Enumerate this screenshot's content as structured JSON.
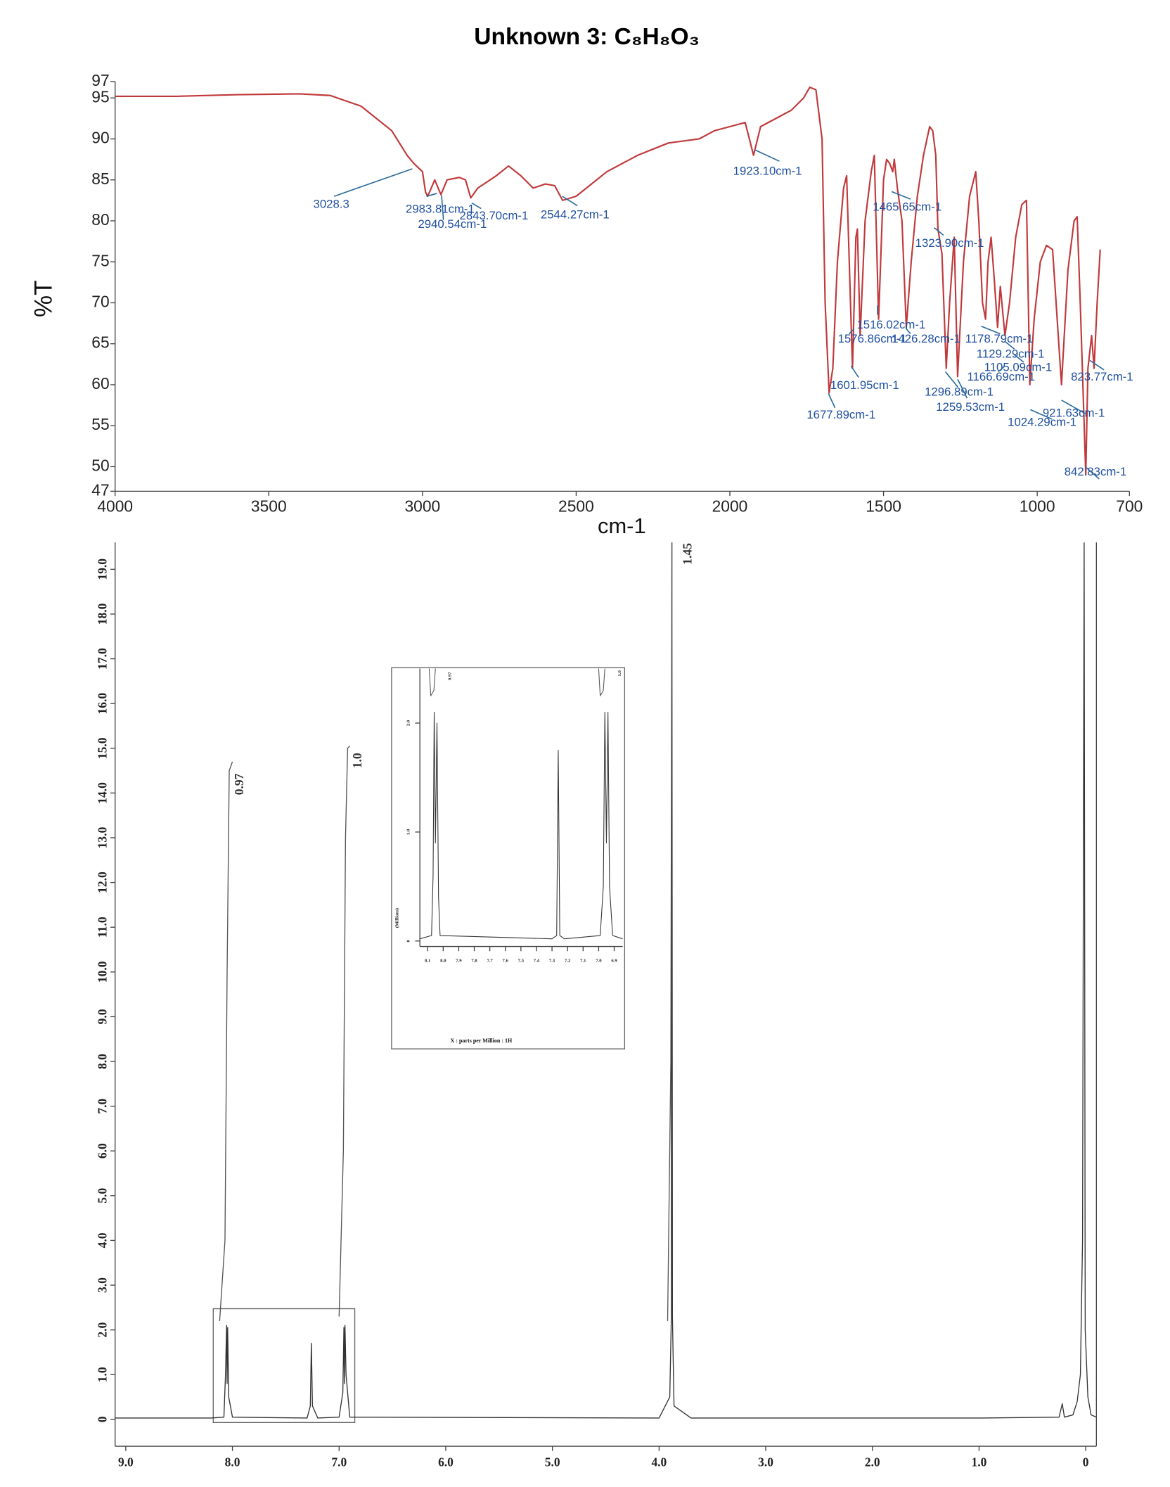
{
  "chart_data": [
    {
      "type": "line",
      "title": "Unknown 3: C₈H₈O₃",
      "x_label": "cm-1",
      "y_label": "%T",
      "xlim": [
        4000,
        700
      ],
      "xticks": [
        4000,
        3500,
        3000,
        2500,
        2000,
        1500,
        1000,
        700
      ],
      "ylim": [
        47,
        97
      ],
      "yticks": [
        97,
        95,
        90,
        85,
        80,
        75,
        70,
        65,
        60,
        55,
        50,
        47
      ],
      "grid": false,
      "annotations": [
        "3028.3",
        "2983.81cm-1",
        "2843.70cm-1",
        "2940.54cm-1",
        "2544.27cm-1",
        "1923.10cm-1",
        "1465.65cm-1",
        "1323.90cm-1",
        "1516.02cm-1",
        "1576.86cm-1",
        "1426.28cm-1",
        "1178.79cm-1",
        "1129.29cm-1",
        "1105.09cm-1",
        "1166.69cm-1",
        "823.77cm-1",
        "1601.95cm-1",
        "1296.89cm-1",
        "1259.53cm-1",
        "1677.89cm-1",
        "921.63cm-1",
        "1024.29cm-1",
        "842.83cm-1"
      ],
      "series": [
        {
          "color": "#c0393b",
          "x": [
            4000,
            3800,
            3600,
            3400,
            3300,
            3200,
            3100,
            3050,
            3028,
            3000,
            2990,
            2983,
            2960,
            2940,
            2920,
            2880,
            2860,
            2843,
            2820,
            2760,
            2720,
            2680,
            2640,
            2600,
            2570,
            2544,
            2500,
            2400,
            2300,
            2200,
            2100,
            2050,
            2000,
            1950,
            1923,
            1900,
            1850,
            1800,
            1760,
            1740,
            1720,
            1700,
            1690,
            1677,
            1665,
            1650,
            1630,
            1620,
            1601,
            1590,
            1585,
            1576,
            1560,
            1540,
            1530,
            1516,
            1500,
            1490,
            1480,
            1470,
            1465,
            1455,
            1440,
            1426,
            1410,
            1390,
            1370,
            1350,
            1340,
            1330,
            1323,
            1310,
            1296,
            1285,
            1270,
            1259,
            1240,
            1220,
            1200,
            1190,
            1178,
            1168,
            1160,
            1150,
            1140,
            1129,
            1120,
            1105,
            1090,
            1070,
            1050,
            1035,
            1024,
            1010,
            990,
            970,
            950,
            921,
            900,
            880,
            870,
            860,
            842,
            835,
            823,
            815,
            805,
            795
          ],
          "values": [
            95.2,
            95.2,
            95.4,
            95.5,
            95.3,
            94,
            91,
            88,
            87,
            86,
            83.5,
            83,
            85,
            83.2,
            85,
            85.3,
            85,
            82.8,
            84,
            85.5,
            86.7,
            85.5,
            84,
            84.5,
            84.3,
            82.5,
            83,
            86,
            88,
            89.5,
            90,
            91,
            91.5,
            92,
            88,
            91.5,
            92.5,
            93.5,
            95,
            96.3,
            96,
            90,
            70,
            59,
            62,
            75,
            84,
            85.5,
            62,
            78,
            79,
            66,
            80,
            86,
            88,
            68,
            85,
            87.5,
            87,
            86,
            87.5,
            84,
            80,
            67,
            75,
            83,
            88,
            91.5,
            91,
            88,
            79,
            76,
            62,
            70,
            78,
            61,
            75,
            83,
            86,
            80,
            70,
            68,
            75,
            78,
            73,
            67,
            72,
            66,
            70,
            78,
            82,
            82.5,
            60,
            68,
            75,
            77,
            76.5,
            60,
            74,
            80,
            80.5,
            70,
            49,
            62,
            66,
            62,
            70,
            76.5
          ]
        }
      ]
    },
    {
      "type": "line",
      "xlim": [
        9.1,
        -0.1
      ],
      "xticks": [
        {
          "value": 9,
          "label": "9.0"
        },
        {
          "value": 8,
          "label": "8.0"
        },
        {
          "value": 7,
          "label": "7.0"
        },
        {
          "value": 6,
          "label": "6.0"
        },
        {
          "value": 5,
          "label": "5.0"
        },
        {
          "value": 4,
          "label": "4.0"
        },
        {
          "value": 3,
          "label": "3.0"
        },
        {
          "value": 2,
          "label": "2.0"
        },
        {
          "value": 1,
          "label": "1.0"
        },
        0
      ],
      "ylim": [
        -0.6,
        19.6
      ],
      "yticks": [
        {
          "value": 19,
          "label": "19.0"
        },
        {
          "value": 18,
          "label": "18.0"
        },
        {
          "value": 17,
          "label": "17.0"
        },
        {
          "value": 16,
          "label": "16.0"
        },
        {
          "value": 15,
          "label": "15.0"
        },
        {
          "value": 14,
          "label": "14.0"
        },
        {
          "value": 13,
          "label": "13.0"
        },
        {
          "value": 12,
          "label": "12.0"
        },
        {
          "value": 11,
          "label": "11.0"
        },
        {
          "value": 10,
          "label": "10.0"
        },
        {
          "value": 9,
          "label": "9.0"
        },
        {
          "value": 8,
          "label": "8.0"
        },
        {
          "value": 7,
          "label": "7.0"
        },
        {
          "value": 6,
          "label": "6.0"
        },
        {
          "value": 5,
          "label": "5.0"
        },
        {
          "value": 4,
          "label": "4.0"
        },
        {
          "value": 3,
          "label": "3.0"
        },
        {
          "value": 2,
          "label": "2.0"
        },
        {
          "value": 1,
          "label": "1.0"
        },
        0
      ],
      "grid": false,
      "annotations": [
        "0.97",
        "1.0",
        "1.45"
      ],
      "series": [
        {
          "color": "#333333",
          "x": [
            9.1,
            8.2,
            8.08,
            8.065,
            8.055,
            8.05,
            8.045,
            8.035,
            8.0,
            7.3,
            7.27,
            7.26,
            7.25,
            7.2,
            7.0,
            6.965,
            6.955,
            6.95,
            6.945,
            6.935,
            6.9,
            4.0,
            3.9,
            3.885,
            3.88,
            3.875,
            3.86,
            3.7,
            1.0,
            0.25,
            0.22,
            0.2,
            0.12,
            0.08,
            0.05,
            0.03,
            0.015,
            0.005,
            -0.02,
            -0.05,
            -0.1
          ],
          "values": [
            0.03,
            0.03,
            0.05,
            1.0,
            2.1,
            0.8,
            2.05,
            0.5,
            0.05,
            0.03,
            0.3,
            1.7,
            0.3,
            0.03,
            0.05,
            0.6,
            2.05,
            0.8,
            2.1,
            1.0,
            0.05,
            0.03,
            0.5,
            2.3,
            19.6,
            2.3,
            0.3,
            0.03,
            0.03,
            0.05,
            0.35,
            0.05,
            0.1,
            0.4,
            1.0,
            4.0,
            19.6,
            2.0,
            0.5,
            0.1,
            0.05
          ]
        },
        {
          "color": "#555555",
          "x": [
            8.12,
            8.07,
            8.05,
            8.03,
            8.0
          ],
          "values": [
            2.2,
            4,
            10,
            14.5,
            14.7
          ]
        },
        {
          "color": "#555555",
          "x": [
            7.0,
            6.96,
            6.94,
            6.92,
            6.9
          ],
          "values": [
            2.3,
            6,
            13,
            15.0,
            15.05
          ]
        },
        {
          "color": "#555555",
          "x": [
            3.92,
            3.89,
            3.88
          ],
          "values": [
            2.2,
            8,
            19.6
          ]
        }
      ]
    },
    {
      "type": "line",
      "x_label": "X : parts per Million : 1H",
      "y_label": "(Millions)",
      "xlim": [
        8.15,
        6.845
      ],
      "xticks": [
        8.1,
        {
          "value": 8,
          "label": "8.0"
        },
        7.9,
        7.8,
        7.7,
        7.6,
        7.5,
        7.4,
        7.3,
        7.2,
        7.1,
        {
          "value": 7,
          "label": "7.0"
        },
        6.9
      ],
      "ylim": [
        -0.05,
        2.5
      ],
      "yticks": [
        {
          "value": 2,
          "label": "2.0"
        },
        {
          "value": 1,
          "label": "1.0"
        },
        0
      ],
      "grid": false,
      "annotations": [
        "0.97",
        "1.0"
      ],
      "series": [
        {
          "color": "#333333",
          "x": [
            8.15,
            8.075,
            8.065,
            8.058,
            8.05,
            8.04,
            8.03,
            8.02,
            7.3,
            7.27,
            7.26,
            7.25,
            7.22,
            6.99,
            6.97,
            6.96,
            6.95,
            6.94,
            6.93,
            6.91,
            6.845
          ],
          "values": [
            0.02,
            0.05,
            0.6,
            2.1,
            0.9,
            2.0,
            0.4,
            0.05,
            0.02,
            0.05,
            1.75,
            0.05,
            0.02,
            0.05,
            0.5,
            2.1,
            0.9,
            2.1,
            0.5,
            0.05,
            0.02
          ]
        },
        {
          "color": "#555555",
          "x": [
            8.09,
            8.08,
            8.06,
            8.05
          ],
          "values": [
            2.5,
            2.25,
            2.3,
            2.5
          ]
        },
        {
          "color": "#555555",
          "x": [
            7.0,
            6.99,
            6.97,
            6.96
          ],
          "values": [
            2.5,
            2.25,
            2.3,
            2.5
          ]
        }
      ]
    }
  ]
}
